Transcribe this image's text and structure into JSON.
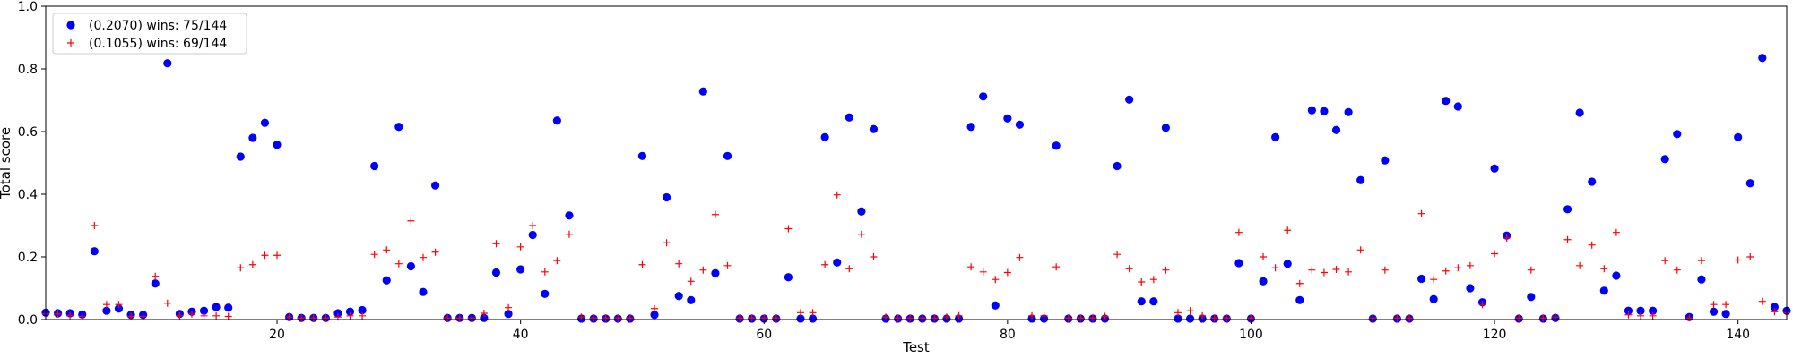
{
  "chart_data": {
    "type": "scatter",
    "xlabel": "Test",
    "ylabel": "Total score",
    "xlim": [
      1,
      144
    ],
    "ylim": [
      0,
      1.0
    ],
    "x_ticks": [
      20,
      40,
      60,
      80,
      100,
      120,
      140
    ],
    "y_ticks": [
      0.0,
      0.2,
      0.4,
      0.6,
      0.8,
      1.0
    ],
    "x_tick_labels": [
      "20",
      "40",
      "60",
      "80",
      "100",
      "120",
      "140"
    ],
    "y_tick_labels": [
      "0.0",
      "0.2",
      "0.4",
      "0.6",
      "0.8",
      "1.0"
    ],
    "grid": false,
    "legend_position": "top-left",
    "series": [
      {
        "name": "(0.2070) wins: 75/144",
        "marker": "circle",
        "color": "#0000ff",
        "x": [
          1,
          2,
          3,
          4,
          5,
          6,
          7,
          8,
          9,
          10,
          11,
          12,
          13,
          14,
          15,
          16,
          17,
          18,
          19,
          20,
          21,
          22,
          23,
          24,
          25,
          26,
          27,
          28,
          29,
          30,
          31,
          32,
          33,
          34,
          35,
          36,
          37,
          38,
          39,
          40,
          41,
          42,
          43,
          44,
          45,
          46,
          47,
          48,
          49,
          50,
          51,
          52,
          53,
          54,
          55,
          56,
          57,
          58,
          59,
          60,
          61,
          62,
          63,
          64,
          65,
          66,
          67,
          68,
          69,
          70,
          71,
          72,
          73,
          74,
          75,
          76,
          77,
          78,
          79,
          80,
          81,
          82,
          83,
          84,
          85,
          86,
          87,
          88,
          89,
          90,
          91,
          92,
          93,
          94,
          95,
          96,
          97,
          98,
          99,
          100,
          101,
          102,
          103,
          104,
          105,
          106,
          107,
          108,
          109,
          110,
          111,
          112,
          113,
          114,
          115,
          116,
          117,
          118,
          119,
          120,
          121,
          122,
          123,
          124,
          125,
          126,
          127,
          128,
          129,
          130,
          131,
          132,
          133,
          134,
          135,
          136,
          137,
          138,
          139,
          140,
          141,
          142,
          143,
          144
        ],
        "y": [
          0.022,
          0.02,
          0.02,
          0.016,
          0.218,
          0.028,
          0.035,
          0.015,
          0.015,
          0.115,
          0.818,
          0.018,
          0.025,
          0.028,
          0.04,
          0.038,
          0.52,
          0.58,
          0.628,
          0.558,
          0.008,
          0.005,
          0.005,
          0.005,
          0.02,
          0.025,
          0.03,
          0.49,
          0.125,
          0.615,
          0.17,
          0.088,
          0.428,
          0.005,
          0.005,
          0.005,
          0.005,
          0.15,
          0.018,
          0.16,
          0.27,
          0.082,
          0.635,
          0.332,
          0.003,
          0.003,
          0.003,
          0.003,
          0.003,
          0.522,
          0.015,
          0.39,
          0.075,
          0.062,
          0.728,
          0.148,
          0.522,
          0.003,
          0.003,
          0.003,
          0.003,
          0.135,
          0.003,
          0.003,
          0.582,
          0.182,
          0.645,
          0.345,
          0.608,
          0.003,
          0.003,
          0.003,
          0.003,
          0.003,
          0.003,
          0.003,
          0.615,
          0.712,
          0.045,
          0.642,
          0.622,
          0.003,
          0.003,
          0.555,
          0.003,
          0.003,
          0.003,
          0.003,
          0.49,
          0.702,
          0.058,
          0.058,
          0.612,
          0.003,
          0.003,
          0.003,
          0.003,
          0.003,
          0.18,
          0.003,
          0.122,
          0.582,
          0.178,
          0.062,
          0.668,
          0.665,
          0.605,
          0.662,
          0.445,
          0.003,
          0.508,
          0.003,
          0.003,
          0.13,
          0.065,
          0.698,
          0.68,
          0.1,
          0.055,
          0.482,
          0.268,
          0.003,
          0.072,
          0.003,
          0.005,
          0.352,
          0.66,
          0.44,
          0.092,
          0.14,
          0.028,
          0.028,
          0.028,
          0.512,
          0.592,
          0.008,
          0.128,
          0.025,
          0.018,
          0.582,
          0.435,
          0.835,
          0.04,
          0.028
        ]
      },
      {
        "name": "(0.1055) wins: 69/144",
        "marker": "plus",
        "color": "#ff0000",
        "x": [
          1,
          2,
          3,
          4,
          5,
          6,
          7,
          8,
          9,
          10,
          11,
          12,
          13,
          14,
          15,
          16,
          17,
          18,
          19,
          20,
          21,
          22,
          23,
          24,
          25,
          26,
          27,
          28,
          29,
          30,
          31,
          32,
          33,
          34,
          35,
          36,
          37,
          38,
          39,
          40,
          41,
          42,
          43,
          44,
          45,
          46,
          47,
          48,
          49,
          50,
          51,
          52,
          53,
          54,
          55,
          56,
          57,
          58,
          59,
          60,
          61,
          62,
          63,
          64,
          65,
          66,
          67,
          68,
          69,
          70,
          71,
          72,
          73,
          74,
          75,
          76,
          77,
          78,
          79,
          80,
          81,
          82,
          83,
          84,
          85,
          86,
          87,
          88,
          89,
          90,
          91,
          92,
          93,
          94,
          95,
          96,
          97,
          98,
          99,
          100,
          101,
          102,
          103,
          104,
          105,
          106,
          107,
          108,
          109,
          110,
          111,
          112,
          113,
          114,
          115,
          116,
          117,
          118,
          119,
          120,
          121,
          122,
          123,
          124,
          125,
          126,
          127,
          128,
          129,
          130,
          131,
          132,
          133,
          134,
          135,
          136,
          137,
          138,
          139,
          140,
          141,
          142,
          143,
          144
        ],
        "y": [
          0.018,
          0.018,
          0.012,
          0.01,
          0.3,
          0.048,
          0.048,
          0.01,
          0.01,
          0.138,
          0.052,
          0.012,
          0.018,
          0.012,
          0.012,
          0.01,
          0.165,
          0.175,
          0.205,
          0.205,
          0.008,
          0.005,
          0.005,
          0.005,
          0.008,
          0.012,
          0.012,
          0.208,
          0.222,
          0.178,
          0.315,
          0.198,
          0.215,
          0.005,
          0.005,
          0.005,
          0.02,
          0.242,
          0.038,
          0.232,
          0.3,
          0.152,
          0.188,
          0.272,
          0.008,
          0.005,
          0.005,
          0.005,
          0.005,
          0.175,
          0.035,
          0.245,
          0.178,
          0.122,
          0.158,
          0.335,
          0.172,
          0.005,
          0.005,
          0.005,
          0.005,
          0.29,
          0.022,
          0.022,
          0.175,
          0.398,
          0.162,
          0.272,
          0.2,
          0.008,
          0.005,
          0.005,
          0.005,
          0.005,
          0.008,
          0.012,
          0.168,
          0.152,
          0.128,
          0.15,
          0.198,
          0.012,
          0.012,
          0.168,
          0.005,
          0.005,
          0.005,
          0.01,
          0.208,
          0.162,
          0.12,
          0.128,
          0.158,
          0.022,
          0.028,
          0.012,
          0.005,
          0.005,
          0.278,
          0.005,
          0.2,
          0.165,
          0.285,
          0.115,
          0.158,
          0.15,
          0.16,
          0.152,
          0.222,
          0.005,
          0.158,
          0.005,
          0.005,
          0.338,
          0.128,
          0.155,
          0.165,
          0.172,
          0.048,
          0.21,
          0.26,
          0.005,
          0.158,
          0.005,
          0.008,
          0.255,
          0.172,
          0.238,
          0.162,
          0.278,
          0.015,
          0.012,
          0.012,
          0.188,
          0.158,
          0.005,
          0.188,
          0.048,
          0.048,
          0.19,
          0.2,
          0.058,
          0.025,
          0.022
        ]
      }
    ]
  }
}
